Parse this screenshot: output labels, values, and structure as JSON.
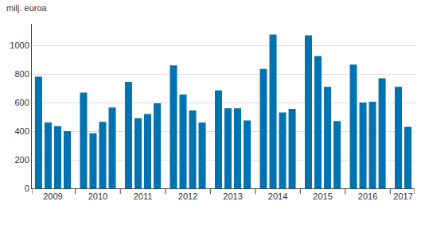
{
  "chart_data": {
    "type": "bar",
    "ylabel": "milj. euroa",
    "categories": [
      "2009",
      null,
      null,
      null,
      "2010",
      null,
      null,
      null,
      "2011",
      null,
      null,
      null,
      "2012",
      null,
      null,
      null,
      "2013",
      null,
      null,
      null,
      "2014",
      null,
      null,
      null,
      "2015",
      null,
      null,
      null,
      "2016",
      null,
      null,
      null,
      "2017",
      null
    ],
    "values": [
      780,
      460,
      435,
      400,
      670,
      385,
      465,
      565,
      745,
      490,
      520,
      595,
      860,
      655,
      545,
      460,
      685,
      560,
      560,
      475,
      835,
      1075,
      530,
      555,
      1070,
      925,
      710,
      470,
      865,
      600,
      605,
      770,
      710,
      430
    ],
    "color": "#0073b0",
    "ylim": [
      0,
      1150
    ],
    "yticks": [
      0,
      200,
      400,
      600,
      800,
      1000
    ],
    "grid": true
  }
}
